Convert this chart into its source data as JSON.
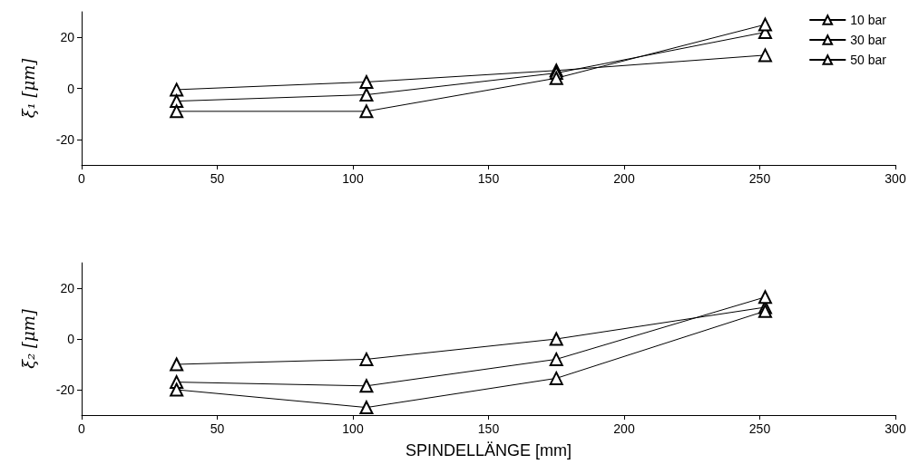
{
  "chart_data": [
    {
      "type": "line",
      "ylabel": "ξ₁ [μm]",
      "x": [
        35,
        105,
        175,
        252
      ],
      "xlim": [
        0,
        300
      ],
      "xticks": [
        0,
        50,
        100,
        150,
        200,
        250,
        300
      ],
      "ylim": [
        -30,
        30
      ],
      "yticks": [
        -20,
        0,
        20
      ],
      "grid": false,
      "legend": "top right",
      "marker": "triangle",
      "line_style": "solid",
      "series": [
        {
          "name": "10 bar",
          "color": "#000000",
          "values": [
            -0.5,
            2.5,
            7,
            13
          ]
        },
        {
          "name": "30 bar",
          "color": "#000000",
          "values": [
            -5,
            -2.5,
            6,
            22
          ]
        },
        {
          "name": "50 bar",
          "color": "#000000",
          "values": [
            -9,
            -9,
            4,
            25
          ]
        }
      ]
    },
    {
      "type": "line",
      "ylabel": "ξ₂ [μm]",
      "xlabel": "SPINDELLÄNGE [mm]",
      "x": [
        35,
        105,
        175,
        252
      ],
      "xlim": [
        0,
        300
      ],
      "xticks": [
        0,
        50,
        100,
        150,
        200,
        250,
        300
      ],
      "ylim": [
        -30,
        30
      ],
      "yticks": [
        -20,
        0,
        20
      ],
      "grid": false,
      "marker": "triangle",
      "line_style": "solid",
      "series": [
        {
          "color": "#000000",
          "values": [
            -10,
            -8,
            0,
            12.5
          ]
        },
        {
          "color": "#000000",
          "values": [
            -17,
            -18.5,
            -8,
            16.5
          ]
        },
        {
          "color": "#000000",
          "values": [
            -20,
            -27,
            -15.5,
            11
          ]
        }
      ]
    }
  ]
}
